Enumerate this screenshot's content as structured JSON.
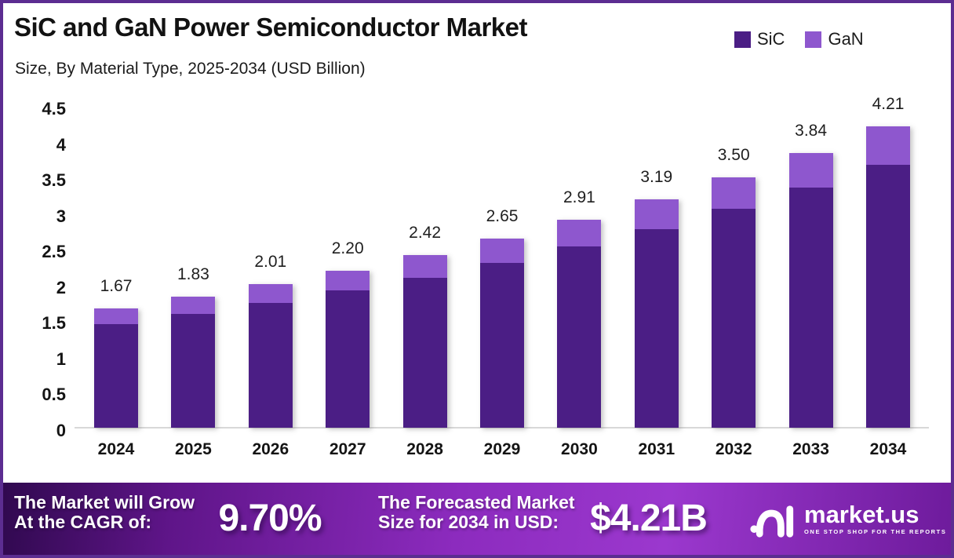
{
  "header": {
    "title": "SiC and GaN Power Semiconductor Market",
    "subtitle": "Size, By Material Type, 2025-2034 (USD Billion)"
  },
  "legend": [
    {
      "label": "SiC",
      "color": "#4B1E85"
    },
    {
      "label": "GaN",
      "color": "#8E57CE"
    }
  ],
  "chart_data": {
    "type": "bar",
    "stacked": true,
    "title": "SiC and GaN Power Semiconductor Market Size, By Material Type, 2025-2034 (USD Billion)",
    "categories": [
      "2024",
      "2025",
      "2026",
      "2027",
      "2028",
      "2029",
      "2030",
      "2031",
      "2032",
      "2033",
      "2034"
    ],
    "series": [
      {
        "name": "SiC",
        "color": "#4B1E85",
        "values": [
          1.45,
          1.59,
          1.74,
          1.92,
          2.1,
          2.31,
          2.54,
          2.78,
          3.06,
          3.36,
          3.68
        ]
      },
      {
        "name": "GaN",
        "color": "#8E57CE",
        "values": [
          0.22,
          0.24,
          0.27,
          0.28,
          0.32,
          0.34,
          0.37,
          0.41,
          0.44,
          0.48,
          0.53
        ]
      }
    ],
    "totals": [
      1.67,
      1.83,
      2.01,
      2.2,
      2.42,
      2.65,
      2.91,
      3.19,
      3.5,
      3.84,
      4.21
    ],
    "total_labels": [
      "1.67",
      "1.83",
      "2.01",
      "2.20",
      "2.42",
      "2.65",
      "2.91",
      "3.19",
      "3.50",
      "3.84",
      "4.21"
    ],
    "xlabel": "",
    "ylabel": "",
    "ylim": [
      0,
      4.5
    ],
    "yticks": [
      "0",
      "0.5",
      "1",
      "1.5",
      "2",
      "2.5",
      "3",
      "3.5",
      "4",
      "4.5"
    ],
    "grid": false,
    "legend_position": "top-right"
  },
  "footer": {
    "cagr_label_lines": [
      "The Market will Grow",
      "At the CAGR of:"
    ],
    "cagr_value": "9.70%",
    "forecast_label_lines": [
      "The Forecasted Market",
      "Size for 2034 in USD:"
    ],
    "forecast_value": "$4.21B",
    "brand": {
      "name": "market.us",
      "tagline": "ONE STOP SHOP FOR THE REPORTS"
    }
  },
  "colors": {
    "sic": "#4B1E85",
    "gan": "#8E57CE",
    "frame_border": "#5C2D91",
    "baseline": "#D8D8D8",
    "banner_gradient_start": "#30094F",
    "banner_gradient_mid": "#8C2BBE",
    "banner_gradient_end": "#6E1B9C"
  }
}
